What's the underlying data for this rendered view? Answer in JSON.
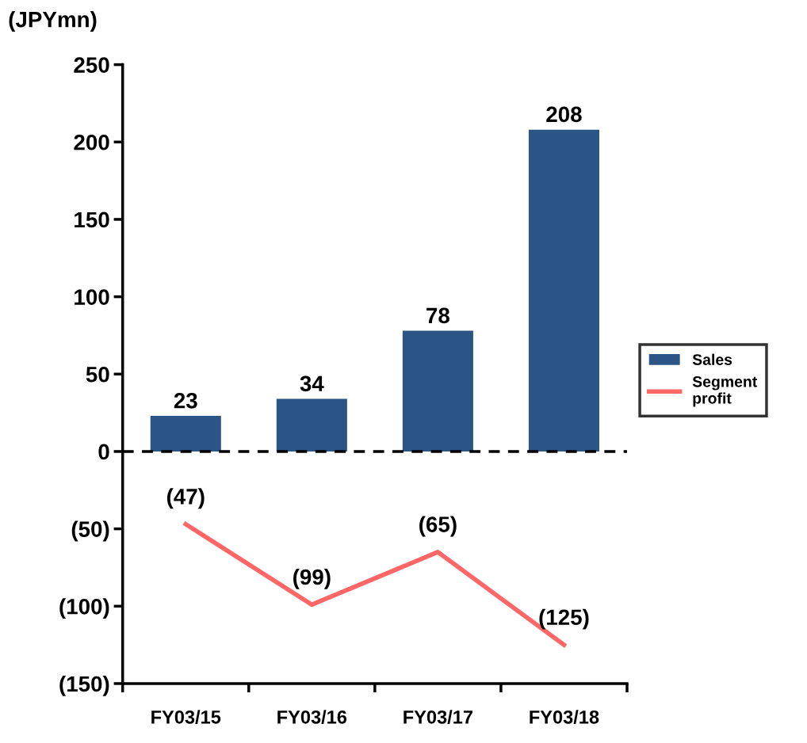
{
  "chart_data": {
    "type": "bar",
    "ylabel": "(JPYmn)",
    "categories": [
      "FY03/15",
      "FY03/16",
      "FY03/17",
      "FY03/18"
    ],
    "series": [
      {
        "name": "Sales",
        "color": "#2b5585",
        "values": [
          23,
          34,
          78,
          208
        ],
        "value_labels": [
          "23",
          "34",
          "78",
          "208"
        ]
      },
      {
        "name": "Segment\nprofit",
        "type": "line",
        "color": "#ff6666",
        "values": [
          -47,
          -99,
          -65,
          -125
        ],
        "value_labels": [
          "(47)",
          "(99)",
          "(65)",
          "(125)"
        ],
        "line_style": "solid",
        "marker": "none"
      }
    ],
    "ylim": [
      -150,
      250
    ],
    "yticks": [
      {
        "value": -150,
        "label": "(150)"
      },
      {
        "value": -100,
        "label": "(100)"
      },
      {
        "value": -50,
        "label": "(50)"
      },
      0,
      50,
      100,
      150,
      200,
      250
    ],
    "ref_lines": [
      {
        "axis": "y",
        "value": 0,
        "color": "#000000",
        "line_style": "dashed"
      }
    ],
    "grid": false,
    "legend": "right"
  }
}
